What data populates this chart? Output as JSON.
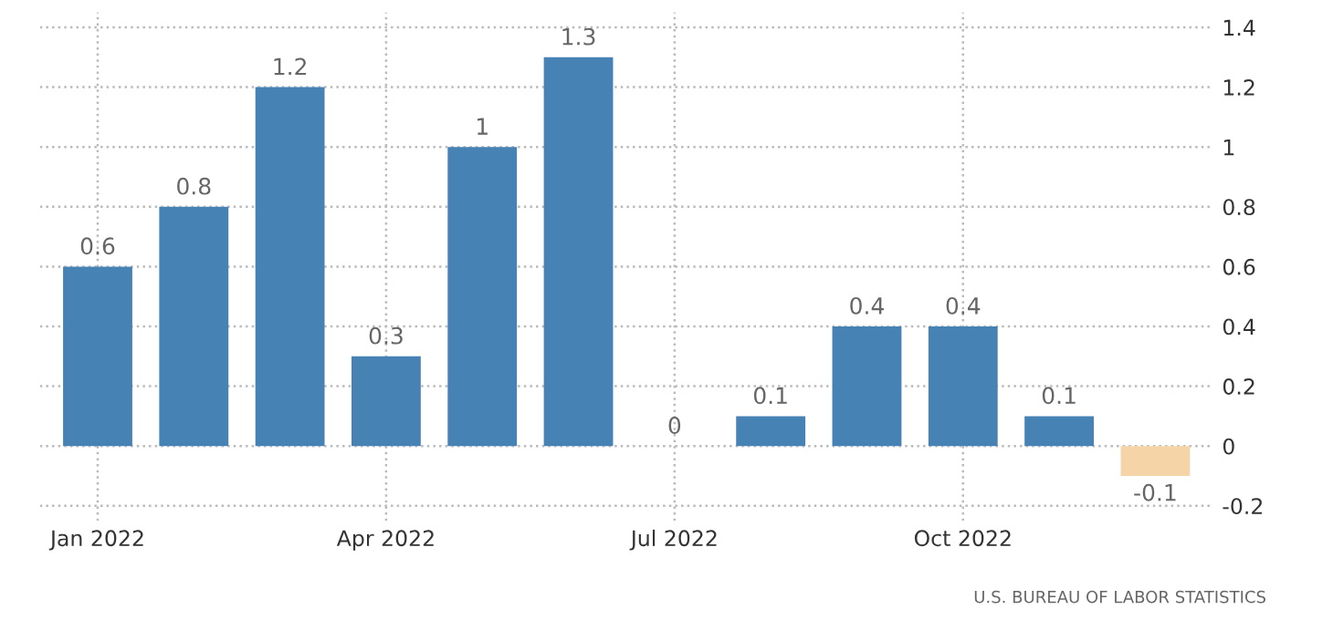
{
  "chart_data": {
    "type": "bar",
    "categories": [
      "Jan 2022",
      null,
      null,
      "Apr 2022",
      null,
      null,
      "Jul 2022",
      null,
      null,
      "Oct 2022",
      null,
      null
    ],
    "values": [
      0.6,
      0.8,
      1.2,
      0.3,
      1,
      1.3,
      0,
      0.1,
      0.4,
      0.4,
      0.1,
      -0.1
    ],
    "colors": [
      "#4682b4",
      "#4682b4",
      "#4682b4",
      "#4682b4",
      "#4682b4",
      "#4682b4",
      "#4682b4",
      "#4682b4",
      "#4682b4",
      "#4682b4",
      "#4682b4",
      "#f5d5a8"
    ],
    "ylim": [
      -0.25,
      1.45
    ],
    "yticks": [
      -0.2,
      0,
      0.2,
      0.4,
      0.6,
      0.8,
      1,
      1.2,
      1.4
    ],
    "grid": true,
    "data_labels": true,
    "annotations": [
      "U.S. BUREAU OF LABOR STATISTICS"
    ]
  }
}
